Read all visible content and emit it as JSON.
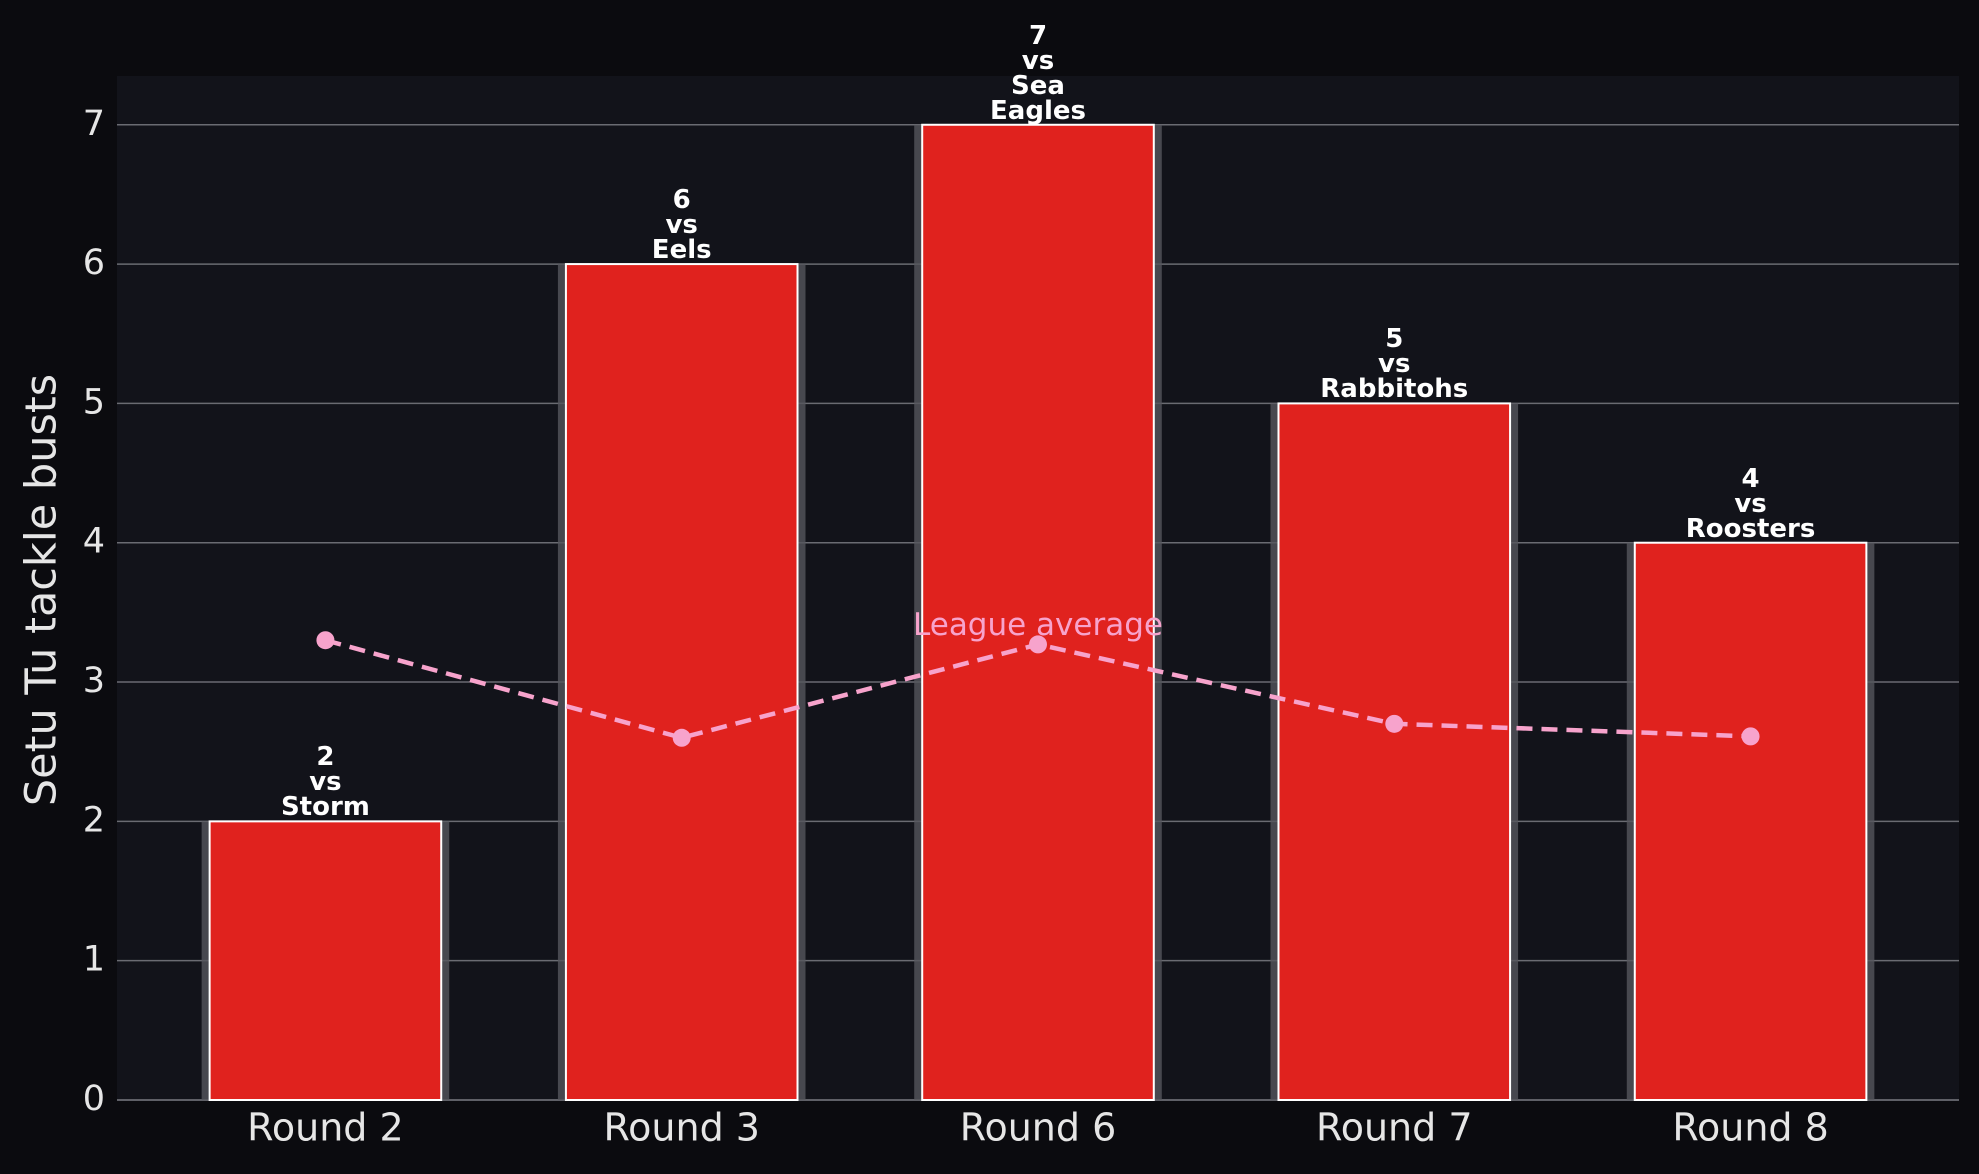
{
  "chart_data": {
    "type": "bar",
    "y_label": "Setu Tu tackle busts",
    "categories": [
      "Round 2",
      "Round 3",
      "Round 6",
      "Round 7",
      "Round 8"
    ],
    "values": [
      2,
      6,
      7,
      5,
      4
    ],
    "value_labels": [
      "2\nvs\nStorm",
      "6\nvs\nEels",
      "7\nvs\nSea\nEagles",
      "5\nvs\nRabbitohs",
      "4\nvs\nRoosters"
    ],
    "color": "#e0221e",
    "average": {
      "name": "League average",
      "color": "#f7a3cc",
      "values": [
        3.3,
        2.6,
        3.27,
        2.7,
        2.61
      ]
    },
    "ylim": [
      0,
      7.35
    ],
    "yticks": [
      0,
      1,
      2,
      3,
      4,
      5,
      6,
      7
    ],
    "grid": true
  }
}
